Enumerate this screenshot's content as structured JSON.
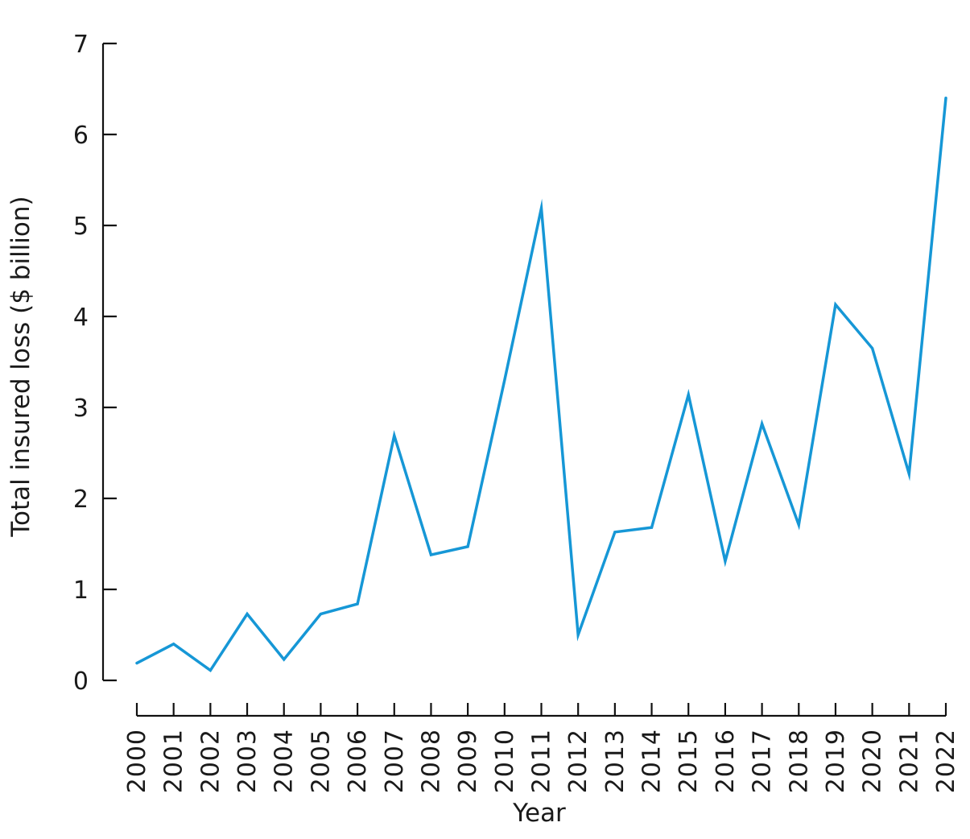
{
  "chart_data": {
    "type": "line",
    "title": "",
    "xlabel": "Year",
    "ylabel": "Total insured loss ($ billion)",
    "x": [
      2000,
      2001,
      2002,
      2003,
      2004,
      2005,
      2006,
      2007,
      2008,
      2009,
      2010,
      2011,
      2012,
      2013,
      2014,
      2015,
      2016,
      2017,
      2018,
      2019,
      2020,
      2021,
      2022
    ],
    "series": [
      {
        "name": "Total insured loss",
        "values": [
          0.19,
          0.4,
          0.11,
          0.73,
          0.23,
          0.73,
          0.84,
          2.69,
          1.38,
          1.47,
          3.3,
          5.19,
          0.5,
          1.63,
          1.68,
          3.14,
          1.31,
          2.82,
          1.71,
          4.13,
          3.65,
          2.27,
          6.4
        ]
      }
    ],
    "ylim": [
      0,
      7
    ],
    "yticks": [
      0,
      1,
      2,
      3,
      4,
      5,
      6,
      7
    ],
    "grid": false,
    "legend": false,
    "line_color": "#1697d6",
    "axis_color": "#111111",
    "text_color": "#1a1a1a",
    "background_color": "#ffffff"
  }
}
